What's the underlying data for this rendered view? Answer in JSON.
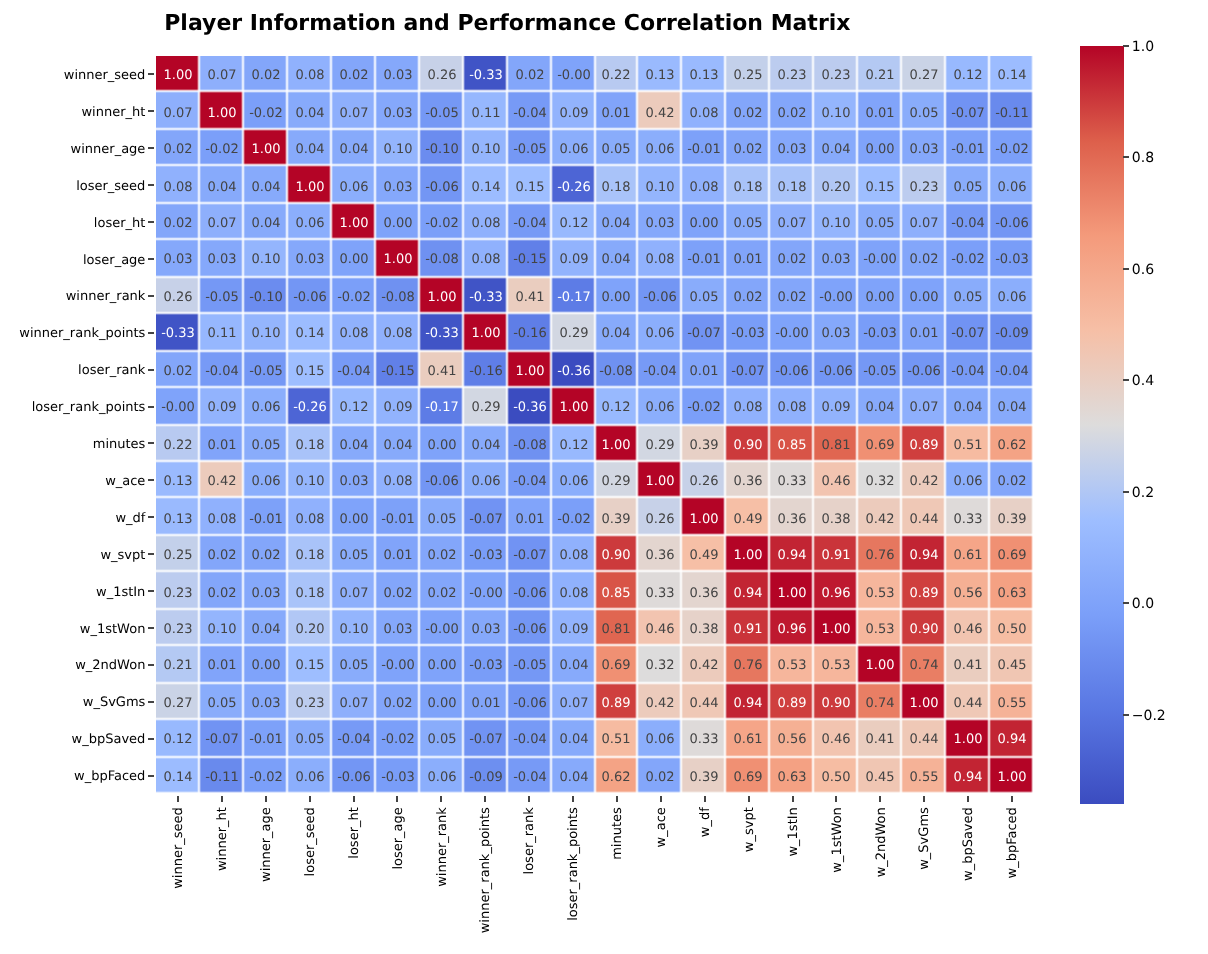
{
  "chart_data": {
    "type": "heatmap",
    "title": "Player Information and Performance Correlation Matrix",
    "categories": [
      "winner_seed",
      "winner_ht",
      "winner_age",
      "loser_seed",
      "loser_ht",
      "loser_age",
      "winner_rank",
      "winner_rank_points",
      "loser_rank",
      "loser_rank_points",
      "minutes",
      "w_ace",
      "w_df",
      "w_svpt",
      "w_1stIn",
      "w_1stWon",
      "w_2ndWon",
      "w_SvGms",
      "w_bpSaved",
      "w_bpFaced"
    ],
    "y_categories": [
      "winner_seed",
      "winner_ht",
      "winner_age",
      "loser_seed",
      "loser_ht",
      "loser_age",
      "winner_rank",
      "winner_rank_points",
      "loser_rank",
      "loser_rank_points",
      "minutes",
      "w_ace",
      "w_df",
      "w_svpt",
      "w_1stIn",
      "w_1stWon",
      "w_2ndWon",
      "w_SvGms",
      "w_bpSaved",
      "w_bpFaced"
    ],
    "cells": [
      [
        1.0,
        0.07,
        0.02,
        0.08,
        0.02,
        0.03,
        0.26,
        -0.33,
        0.02,
        -0.0,
        0.22,
        0.13,
        0.13,
        0.25,
        0.23,
        0.23,
        0.21,
        0.27,
        0.12,
        0.14
      ],
      [
        0.07,
        1.0,
        -0.02,
        0.04,
        0.07,
        0.03,
        -0.05,
        0.11,
        -0.04,
        0.09,
        0.01,
        0.42,
        0.08,
        0.02,
        0.02,
        0.1,
        0.01,
        0.05,
        -0.07,
        -0.11
      ],
      [
        0.02,
        -0.02,
        1.0,
        0.04,
        0.04,
        0.1,
        -0.1,
        0.1,
        -0.05,
        0.06,
        0.05,
        0.06,
        -0.01,
        0.02,
        0.03,
        0.04,
        0.0,
        0.03,
        -0.01,
        -0.02
      ],
      [
        0.08,
        0.04,
        0.04,
        1.0,
        0.06,
        0.03,
        -0.06,
        0.14,
        0.15,
        -0.26,
        0.18,
        0.1,
        0.08,
        0.18,
        0.18,
        0.2,
        0.15,
        0.23,
        0.05,
        0.06
      ],
      [
        0.02,
        0.07,
        0.04,
        0.06,
        1.0,
        0.0,
        -0.02,
        0.08,
        -0.04,
        0.12,
        0.04,
        0.03,
        0.0,
        0.05,
        0.07,
        0.1,
        0.05,
        0.07,
        -0.04,
        -0.06
      ],
      [
        0.03,
        0.03,
        0.1,
        0.03,
        0.0,
        1.0,
        -0.08,
        0.08,
        -0.15,
        0.09,
        0.04,
        0.08,
        -0.01,
        0.01,
        0.02,
        0.03,
        -0.0,
        0.02,
        -0.02,
        -0.03
      ],
      [
        0.26,
        -0.05,
        -0.1,
        -0.06,
        -0.02,
        -0.08,
        1.0,
        -0.33,
        0.41,
        -0.17,
        0.0,
        -0.06,
        0.05,
        0.02,
        0.02,
        -0.0,
        0.0,
        0.0,
        0.05,
        0.06
      ],
      [
        -0.33,
        0.11,
        0.1,
        0.14,
        0.08,
        0.08,
        -0.33,
        1.0,
        -0.16,
        0.29,
        0.04,
        0.06,
        -0.07,
        -0.03,
        -0.0,
        0.03,
        -0.03,
        0.01,
        -0.07,
        -0.09
      ],
      [
        0.02,
        -0.04,
        -0.05,
        0.15,
        -0.04,
        -0.15,
        0.41,
        -0.16,
        1.0,
        -0.36,
        -0.08,
        -0.04,
        0.01,
        -0.07,
        -0.06,
        -0.06,
        -0.05,
        -0.06,
        -0.04,
        -0.04
      ],
      [
        -0.0,
        0.09,
        0.06,
        -0.26,
        0.12,
        0.09,
        -0.17,
        0.29,
        -0.36,
        1.0,
        0.12,
        0.06,
        -0.02,
        0.08,
        0.08,
        0.09,
        0.04,
        0.07,
        0.04,
        0.04
      ],
      [
        0.22,
        0.01,
        0.05,
        0.18,
        0.04,
        0.04,
        0.0,
        0.04,
        -0.08,
        0.12,
        1.0,
        0.29,
        0.39,
        0.9,
        0.85,
        0.81,
        0.69,
        0.89,
        0.51,
        0.62
      ],
      [
        0.13,
        0.42,
        0.06,
        0.1,
        0.03,
        0.08,
        -0.06,
        0.06,
        -0.04,
        0.06,
        0.29,
        1.0,
        0.26,
        0.36,
        0.33,
        0.46,
        0.32,
        0.42,
        0.06,
        0.02
      ],
      [
        0.13,
        0.08,
        -0.01,
        0.08,
        0.0,
        -0.01,
        0.05,
        -0.07,
        0.01,
        -0.02,
        0.39,
        0.26,
        1.0,
        0.49,
        0.36,
        0.38,
        0.42,
        0.44,
        0.33,
        0.39
      ],
      [
        0.25,
        0.02,
        0.02,
        0.18,
        0.05,
        0.01,
        0.02,
        -0.03,
        -0.07,
        0.08,
        0.9,
        0.36,
        0.49,
        1.0,
        0.94,
        0.91,
        0.76,
        0.94,
        0.61,
        0.69
      ],
      [
        0.23,
        0.02,
        0.03,
        0.18,
        0.07,
        0.02,
        0.02,
        -0.0,
        -0.06,
        0.08,
        0.85,
        0.33,
        0.36,
        0.94,
        1.0,
        0.96,
        0.53,
        0.89,
        0.56,
        0.63
      ],
      [
        0.23,
        0.1,
        0.04,
        0.2,
        0.1,
        0.03,
        -0.0,
        0.03,
        -0.06,
        0.09,
        0.81,
        0.46,
        0.38,
        0.91,
        0.96,
        1.0,
        0.53,
        0.9,
        0.46,
        0.5
      ],
      [
        0.21,
        0.01,
        0.0,
        0.15,
        0.05,
        -0.0,
        0.0,
        -0.03,
        -0.05,
        0.04,
        0.69,
        0.32,
        0.42,
        0.76,
        0.53,
        0.53,
        1.0,
        0.74,
        0.41,
        0.45
      ],
      [
        0.27,
        0.05,
        0.03,
        0.23,
        0.07,
        0.02,
        0.0,
        0.01,
        -0.06,
        0.07,
        0.89,
        0.42,
        0.44,
        0.94,
        0.89,
        0.9,
        0.74,
        1.0,
        0.44,
        0.55
      ],
      [
        0.12,
        -0.07,
        -0.01,
        0.05,
        -0.04,
        -0.02,
        0.05,
        -0.07,
        -0.04,
        0.04,
        0.51,
        0.06,
        0.33,
        0.61,
        0.56,
        0.46,
        0.41,
        0.44,
        1.0,
        0.94
      ],
      [
        0.14,
        -0.11,
        -0.02,
        0.06,
        -0.06,
        -0.03,
        0.06,
        -0.09,
        -0.04,
        0.04,
        0.62,
        0.02,
        0.39,
        0.69,
        0.63,
        0.5,
        0.45,
        0.55,
        0.94,
        1.0
      ]
    ],
    "cell_labels": [
      [
        "1.00",
        "0.07",
        "0.02",
        "0.08",
        "0.02",
        "0.03",
        "0.26",
        "-0.33",
        "0.02",
        "-0.00",
        "0.22",
        "0.13",
        "0.13",
        "0.25",
        "0.23",
        "0.23",
        "0.21",
        "0.27",
        "0.12",
        "0.14"
      ],
      [
        "0.07",
        "1.00",
        "-0.02",
        "0.04",
        "0.07",
        "0.03",
        "-0.05",
        "0.11",
        "-0.04",
        "0.09",
        "0.01",
        "0.42",
        "0.08",
        "0.02",
        "0.02",
        "0.10",
        "0.01",
        "0.05",
        "-0.07",
        "-0.11"
      ],
      [
        "0.02",
        "-0.02",
        "1.00",
        "0.04",
        "0.04",
        "0.10",
        "-0.10",
        "0.10",
        "-0.05",
        "0.06",
        "0.05",
        "0.06",
        "-0.01",
        "0.02",
        "0.03",
        "0.04",
        "0.00",
        "0.03",
        "-0.01",
        "-0.02"
      ],
      [
        "0.08",
        "0.04",
        "0.04",
        "1.00",
        "0.06",
        "0.03",
        "-0.06",
        "0.14",
        "0.15",
        "-0.26",
        "0.18",
        "0.10",
        "0.08",
        "0.18",
        "0.18",
        "0.20",
        "0.15",
        "0.23",
        "0.05",
        "0.06"
      ],
      [
        "0.02",
        "0.07",
        "0.04",
        "0.06",
        "1.00",
        "0.00",
        "-0.02",
        "0.08",
        "-0.04",
        "0.12",
        "0.04",
        "0.03",
        "0.00",
        "0.05",
        "0.07",
        "0.10",
        "0.05",
        "0.07",
        "-0.04",
        "-0.06"
      ],
      [
        "0.03",
        "0.03",
        "0.10",
        "0.03",
        "0.00",
        "1.00",
        "-0.08",
        "0.08",
        "-0.15",
        "0.09",
        "0.04",
        "0.08",
        "-0.01",
        "0.01",
        "0.02",
        "0.03",
        "-0.00",
        "0.02",
        "-0.02",
        "-0.03"
      ],
      [
        "0.26",
        "-0.05",
        "-0.10",
        "-0.06",
        "-0.02",
        "-0.08",
        "1.00",
        "-0.33",
        "0.41",
        "-0.17",
        "0.00",
        "-0.06",
        "0.05",
        "0.02",
        "0.02",
        "-0.00",
        "0.00",
        "0.00",
        "0.05",
        "0.06"
      ],
      [
        "-0.33",
        "0.11",
        "0.10",
        "0.14",
        "0.08",
        "0.08",
        "-0.33",
        "1.00",
        "-0.16",
        "0.29",
        "0.04",
        "0.06",
        "-0.07",
        "-0.03",
        "-0.00",
        "0.03",
        "-0.03",
        "0.01",
        "-0.07",
        "-0.09"
      ],
      [
        "0.02",
        "-0.04",
        "-0.05",
        "0.15",
        "-0.04",
        "-0.15",
        "0.41",
        "-0.16",
        "1.00",
        "-0.36",
        "-0.08",
        "-0.04",
        "0.01",
        "-0.07",
        "-0.06",
        "-0.06",
        "-0.05",
        "-0.06",
        "-0.04",
        "-0.04"
      ],
      [
        "-0.00",
        "0.09",
        "0.06",
        "-0.26",
        "0.12",
        "0.09",
        "-0.17",
        "0.29",
        "-0.36",
        "1.00",
        "0.12",
        "0.06",
        "-0.02",
        "0.08",
        "0.08",
        "0.09",
        "0.04",
        "0.07",
        "0.04",
        "0.04"
      ],
      [
        "0.22",
        "0.01",
        "0.05",
        "0.18",
        "0.04",
        "0.04",
        "0.00",
        "0.04",
        "-0.08",
        "0.12",
        "1.00",
        "0.29",
        "0.39",
        "0.90",
        "0.85",
        "0.81",
        "0.69",
        "0.89",
        "0.51",
        "0.62"
      ],
      [
        "0.13",
        "0.42",
        "0.06",
        "0.10",
        "0.03",
        "0.08",
        "-0.06",
        "0.06",
        "-0.04",
        "0.06",
        "0.29",
        "1.00",
        "0.26",
        "0.36",
        "0.33",
        "0.46",
        "0.32",
        "0.42",
        "0.06",
        "0.02"
      ],
      [
        "0.13",
        "0.08",
        "-0.01",
        "0.08",
        "0.00",
        "-0.01",
        "0.05",
        "-0.07",
        "0.01",
        "-0.02",
        "0.39",
        "0.26",
        "1.00",
        "0.49",
        "0.36",
        "0.38",
        "0.42",
        "0.44",
        "0.33",
        "0.39"
      ],
      [
        "0.25",
        "0.02",
        "0.02",
        "0.18",
        "0.05",
        "0.01",
        "0.02",
        "-0.03",
        "-0.07",
        "0.08",
        "0.90",
        "0.36",
        "0.49",
        "1.00",
        "0.94",
        "0.91",
        "0.76",
        "0.94",
        "0.61",
        "0.69"
      ],
      [
        "0.23",
        "0.02",
        "0.03",
        "0.18",
        "0.07",
        "0.02",
        "0.02",
        "-0.00",
        "-0.06",
        "0.08",
        "0.85",
        "0.33",
        "0.36",
        "0.94",
        "1.00",
        "0.96",
        "0.53",
        "0.89",
        "0.56",
        "0.63"
      ],
      [
        "0.23",
        "0.10",
        "0.04",
        "0.20",
        "0.10",
        "0.03",
        "-0.00",
        "0.03",
        "-0.06",
        "0.09",
        "0.81",
        "0.46",
        "0.38",
        "0.91",
        "0.96",
        "1.00",
        "0.53",
        "0.90",
        "0.46",
        "0.50"
      ],
      [
        "0.21",
        "0.01",
        "0.00",
        "0.15",
        "0.05",
        "-0.00",
        "0.00",
        "-0.03",
        "-0.05",
        "0.04",
        "0.69",
        "0.32",
        "0.42",
        "0.76",
        "0.53",
        "0.53",
        "1.00",
        "0.74",
        "0.41",
        "0.45"
      ],
      [
        "0.27",
        "0.05",
        "0.03",
        "0.23",
        "0.07",
        "0.02",
        "0.00",
        "0.01",
        "-0.06",
        "0.07",
        "0.89",
        "0.42",
        "0.44",
        "0.94",
        "0.89",
        "0.90",
        "0.74",
        "1.00",
        "0.44",
        "0.55"
      ],
      [
        "0.12",
        "-0.07",
        "-0.01",
        "0.05",
        "-0.04",
        "-0.02",
        "0.05",
        "-0.07",
        "-0.04",
        "0.04",
        "0.51",
        "0.06",
        "0.33",
        "0.61",
        "0.56",
        "0.46",
        "0.41",
        "0.44",
        "1.00",
        "0.94"
      ],
      [
        "0.14",
        "-0.11",
        "-0.02",
        "0.06",
        "-0.06",
        "-0.03",
        "0.06",
        "-0.09",
        "-0.04",
        "0.04",
        "0.62",
        "0.02",
        "0.39",
        "0.69",
        "0.63",
        "0.50",
        "0.45",
        "0.55",
        "0.94",
        "1.00"
      ]
    ],
    "clim": [
      -0.36,
      1.0
    ],
    "cticks": [
      {
        "value": -0.2,
        "label": "−0.2"
      },
      {
        "value": 0.0,
        "label": "0.0"
      },
      {
        "value": 0.2,
        "label": "0.2"
      },
      {
        "value": 0.4,
        "label": "0.4"
      },
      {
        "value": 0.6,
        "label": "0.6"
      },
      {
        "value": 0.8,
        "label": "0.8"
      },
      {
        "value": 1.0,
        "label": "1.0"
      }
    ]
  }
}
